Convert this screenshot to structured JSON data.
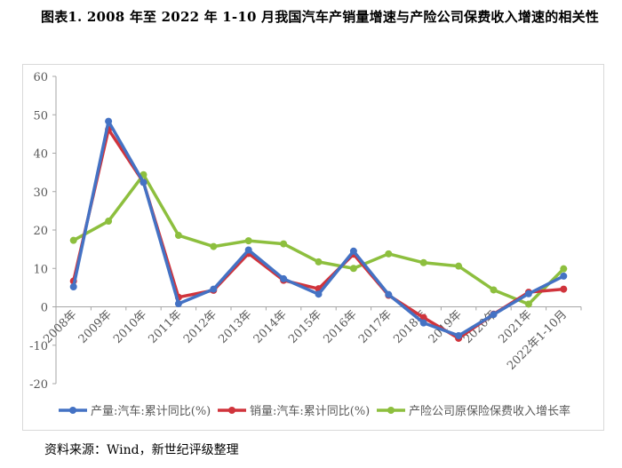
{
  "title": "图表1.   2008 年至 2022 年 1-10 月我国汽车产销量增速与产险公司保费收入增速的相关性",
  "source": "资料来源：Wind，新世纪评级整理",
  "chart_data": {
    "type": "line",
    "title": "",
    "xlabel": "",
    "ylabel": "",
    "ylim": [
      -20,
      60
    ],
    "yticks": [
      -20,
      -10,
      0,
      10,
      20,
      30,
      40,
      50,
      60
    ],
    "grid": false,
    "legend_position": "bottom",
    "categories": [
      "2008年",
      "2009年",
      "2010年",
      "2011年",
      "2012年",
      "2013年",
      "2014年",
      "2015年",
      "2016年",
      "2017年",
      "2018年",
      "2019年",
      "2020年",
      "2021年",
      "2022年1-10月"
    ],
    "series": [
      {
        "name": "产量:汽车:累计同比(%)",
        "color": "#4472c4",
        "values": [
          5.2,
          48.3,
          32.4,
          0.8,
          4.6,
          14.8,
          7.3,
          3.3,
          14.5,
          3.2,
          -4.2,
          -7.5,
          -2.0,
          3.4,
          8.0
        ]
      },
      {
        "name": "销量:汽车:累计同比(%)",
        "color": "#d0343c",
        "values": [
          6.7,
          46.2,
          32.4,
          2.5,
          4.3,
          13.9,
          6.9,
          4.7,
          13.7,
          3.0,
          -2.8,
          -8.2,
          -1.9,
          3.8,
          4.6
        ]
      },
      {
        "name": "产险公司原保险保费收入增长率",
        "color": "#8dbf3e",
        "values": [
          17.3,
          22.3,
          34.4,
          18.6,
          15.7,
          17.2,
          16.4,
          11.7,
          10.0,
          13.8,
          11.5,
          10.6,
          4.4,
          0.7,
          9.9
        ]
      }
    ]
  }
}
